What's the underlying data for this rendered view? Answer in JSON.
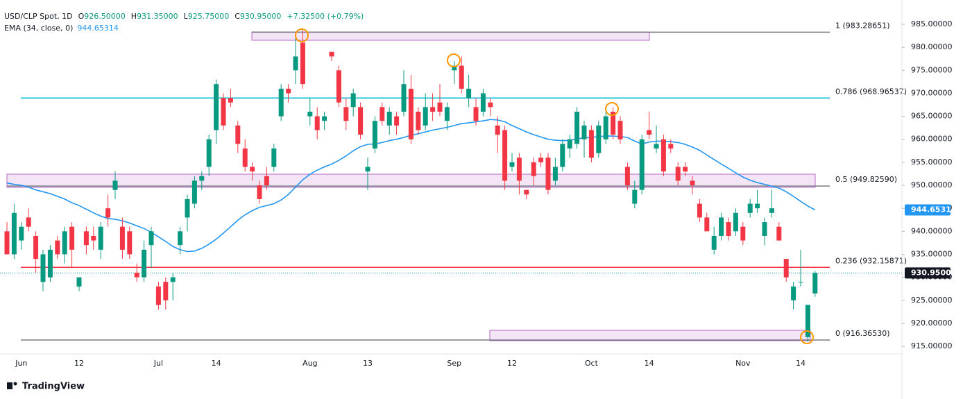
{
  "chart_data": {
    "type": "candlestick",
    "header": {
      "symbol": "USD/CLP Spot, 1D",
      "ohlc": [
        {
          "key": "O",
          "value": "926.50000"
        },
        {
          "key": "H",
          "value": "931.35000"
        },
        {
          "key": "L",
          "value": "925.75000"
        },
        {
          "key": "C",
          "value": "930.95000"
        }
      ],
      "change": "+7.32500 (+0.79%)",
      "ema_name": "EMA (34, close, 0)",
      "ema_value": "944.65314"
    },
    "last_price_label": "930.95000",
    "categories": [
      null,
      null,
      "Jun",
      null,
      null,
      null,
      null,
      null,
      null,
      null,
      "12",
      null,
      null,
      null,
      null,
      null,
      null,
      null,
      null,
      null,
      null,
      "Jul",
      null,
      null,
      null,
      null,
      null,
      null,
      null,
      "14",
      null,
      null,
      null,
      null,
      null,
      null,
      null,
      null,
      null,
      null,
      null,
      null,
      "Aug",
      null,
      null,
      null,
      null,
      null,
      null,
      null,
      "13",
      null,
      null,
      null,
      null,
      null,
      null,
      null,
      null,
      null,
      null,
      null,
      "Sep",
      null,
      null,
      null,
      null,
      null,
      null,
      null,
      "12",
      null,
      null,
      null,
      null,
      null,
      null,
      null,
      null,
      null,
      null,
      "Oct",
      null,
      null,
      null,
      null,
      null,
      null,
      null,
      "14",
      null,
      null,
      null,
      null,
      null,
      null,
      null,
      null,
      null,
      null,
      null,
      null,
      "Nov",
      null,
      null,
      null,
      null,
      null,
      null,
      null,
      "14",
      null,
      null
    ],
    "open": [
      940,
      935,
      938,
      943,
      939,
      929,
      930,
      938,
      935,
      941,
      928,
      940,
      939,
      936,
      945,
      949,
      941,
      940,
      931,
      930,
      937,
      928,
      929,
      929,
      937,
      943,
      946,
      951,
      954,
      962,
      969,
      969,
      963,
      958,
      954,
      950,
      952,
      954,
      965,
      971,
      975,
      981,
      965,
      965,
      964,
      979,
      975,
      967,
      967,
      967,
      953,
      958,
      967,
      963,
      965,
      966,
      971,
      966,
      963,
      967,
      968,
      964,
      975,
      976,
      969,
      967,
      966,
      968,
      963,
      962,
      954,
      956,
      949,
      955,
      956,
      956,
      951,
      954,
      958,
      959,
      960,
      962,
      957,
      960,
      966,
      964,
      954,
      946,
      949,
      962,
      958,
      960,
      959,
      954,
      954,
      951,
      946,
      943,
      936,
      939,
      942,
      940,
      941,
      944,
      945,
      939,
      944,
      941,
      934,
      925,
      929,
      917,
      926.5
    ],
    "high": [
      942,
      946,
      942,
      945,
      940,
      936,
      937,
      939,
      941,
      942,
      930,
      941,
      941,
      942,
      948,
      953,
      943,
      941,
      933,
      938,
      941,
      929,
      930,
      931,
      941,
      948,
      952,
      953,
      961,
      973,
      970,
      971,
      964,
      960,
      955,
      951,
      954,
      959,
      972,
      972,
      982,
      984,
      969,
      967,
      966,
      979,
      976,
      969,
      971,
      968,
      956,
      965,
      968,
      967,
      966,
      975,
      974,
      967,
      970,
      970,
      972,
      968,
      977,
      978,
      974,
      969,
      971,
      969,
      965,
      963,
      957,
      957,
      949,
      956,
      957,
      957,
      956,
      960,
      961,
      967,
      964,
      963,
      964,
      966,
      967,
      965,
      955,
      951,
      961,
      966,
      963,
      961,
      960,
      955,
      955,
      952,
      947,
      944,
      941,
      944,
      943,
      945,
      942,
      947,
      949,
      943,
      949,
      942,
      934,
      929,
      936,
      924,
      931.35
    ],
    "low": [
      935,
      934,
      936,
      940,
      931,
      927,
      929,
      934,
      933,
      932,
      927,
      935,
      936,
      934,
      941,
      947,
      934,
      934,
      929,
      929,
      932,
      923,
      923,
      925,
      935,
      940,
      945,
      949,
      952,
      959,
      962,
      967,
      957,
      953,
      951,
      946,
      949,
      953,
      964,
      968,
      972,
      971,
      963,
      960,
      962,
      977,
      967,
      962,
      965,
      960,
      949,
      957,
      963,
      961,
      961,
      965,
      959,
      961,
      962,
      964,
      965,
      962,
      972,
      970,
      967,
      963,
      965,
      965,
      957,
      949,
      953,
      948,
      947,
      950,
      954,
      948,
      950,
      953,
      956,
      958,
      956,
      955,
      956,
      959,
      960,
      959,
      949,
      945,
      948,
      960,
      957,
      952,
      957,
      950,
      952,
      948,
      942,
      940,
      935,
      938,
      938,
      939,
      937,
      943,
      944,
      937,
      943,
      938,
      929,
      923,
      928,
      916,
      925.75
    ],
    "close": [
      935,
      944,
      941,
      941,
      934,
      935,
      936,
      935,
      940,
      936,
      930,
      937,
      938,
      941,
      943,
      951,
      936,
      935,
      930,
      936,
      940,
      924,
      925,
      930,
      940,
      947,
      951,
      952,
      960,
      972,
      963,
      968,
      959,
      954,
      953,
      947,
      950,
      958,
      971,
      970,
      978,
      972,
      966,
      962,
      965,
      978,
      968,
      964,
      970,
      961,
      954,
      964,
      964,
      966,
      963,
      972,
      960,
      962,
      967,
      966,
      966,
      967,
      976,
      971,
      971,
      964,
      970,
      967,
      961,
      951,
      955,
      951,
      948,
      952,
      955,
      949,
      954,
      959,
      960,
      966,
      963,
      956,
      963,
      965,
      961,
      960,
      950,
      949,
      960,
      961,
      959,
      953,
      958,
      951,
      953,
      950,
      943,
      940,
      939,
      943,
      939,
      944,
      938,
      946,
      946,
      942,
      945,
      938,
      930,
      928,
      929,
      924,
      930.95
    ],
    "up_color": "#089981",
    "down_color": "#f23645",
    "ema": {
      "color": "#2196f3",
      "values": [
        950.5,
        950.2,
        950.0,
        949.6,
        949.0,
        948.6,
        948.2,
        947.6,
        947.0,
        946.2,
        945.6,
        944.8,
        944.0,
        943.3,
        942.8,
        942.6,
        942.3,
        941.8,
        941.2,
        940.6,
        939.8,
        938.8,
        937.8,
        936.7,
        936.0,
        935.6,
        935.7,
        936.3,
        937.2,
        938.3,
        939.6,
        941.0,
        942.4,
        943.6,
        944.5,
        945.2,
        945.6,
        946.0,
        946.8,
        948.0,
        949.6,
        951.2,
        952.4,
        953.3,
        954.0,
        954.6,
        955.4,
        956.4,
        957.5,
        958.4,
        958.9,
        959.0,
        959.3,
        959.7,
        960.0,
        960.4,
        960.9,
        961.2,
        961.6,
        962.0,
        962.3,
        962.6,
        963.0,
        963.4,
        963.6,
        963.8,
        964.0,
        964.3,
        964.2,
        963.8,
        963.0,
        962.3,
        961.6,
        961.0,
        960.5,
        960.0,
        959.8,
        959.7,
        959.8,
        960.1,
        960.3,
        960.4,
        960.6,
        960.7,
        960.7,
        960.6,
        960.4,
        959.6,
        959.0,
        959.4,
        959.6,
        959.6,
        959.5,
        959.3,
        958.9,
        958.3,
        957.6,
        956.6,
        955.6,
        954.6,
        953.7,
        952.7,
        951.8,
        951.1,
        950.6,
        950.2,
        949.8,
        949.4,
        948.6,
        947.6,
        946.5,
        945.5,
        944.65
      ]
    },
    "fib_levels": [
      {
        "label": "1 (983.28651)",
        "value": 983.28651,
        "color": "#787b86",
        "line_color": "#787b86"
      },
      {
        "label": "0.786 (968.96537)",
        "value": 968.96537,
        "color": "#00bcd4",
        "line_color": "#00bcd4"
      },
      {
        "label": "0.5 (949.82590)",
        "value": 949.8259,
        "color": "#4caf50",
        "line_color": "#787b86"
      },
      {
        "label": "0.236 (932.15871)",
        "value": 932.15871,
        "color": "#f23645",
        "line_color": "#f23645"
      },
      {
        "label": "0 (916.36530)",
        "value": 916.3653,
        "color": "#787b86",
        "line_color": "#787b86"
      }
    ],
    "ylim": [
      913.35,
      990.28
    ],
    "yticks": [
      {
        "value": 915,
        "label": "915.00000"
      },
      {
        "value": 920,
        "label": "920.00000"
      },
      {
        "value": 925,
        "label": "925.00000"
      },
      {
        "value": 930,
        "label": "930.00000"
      },
      {
        "value": 935,
        "label": "935.00000"
      },
      {
        "value": 940,
        "label": "940.00000"
      },
      {
        "value": 945,
        "label": "945.00000"
      },
      {
        "value": 950,
        "label": "950.00000"
      },
      {
        "value": 955,
        "label": "955.00000"
      },
      {
        "value": 960,
        "label": "960.00000"
      },
      {
        "value": 965,
        "label": "965.00000"
      },
      {
        "value": 970,
        "label": "970.00000"
      },
      {
        "value": 975,
        "label": "975.00000"
      },
      {
        "value": 980,
        "label": "980.00000"
      },
      {
        "value": 985,
        "label": "985.00000"
      }
    ],
    "logo": "TradingView"
  }
}
